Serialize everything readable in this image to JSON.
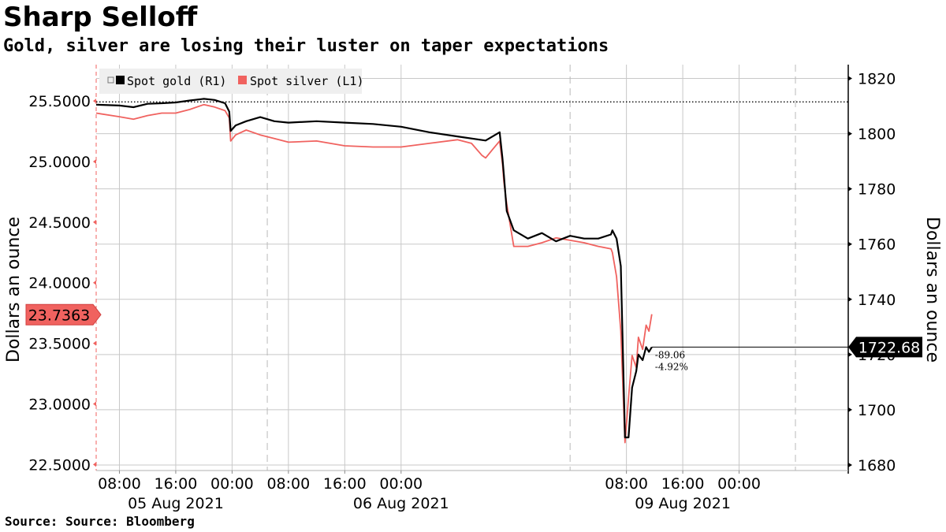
{
  "title": "Sharp Selloff",
  "subtitle": "Gold, silver are losing their luster on taper expectations",
  "source": "Source: Source: Bloomberg",
  "colors": {
    "gold": "#000000",
    "silver": "#f0625f",
    "grid": "#c8c8c8"
  },
  "chart_data": {
    "type": "line",
    "left_axis": {
      "label": "Dollars an ounce",
      "range": [
        22.45,
        25.8
      ],
      "ticks": [
        "22.5000",
        "23.0000",
        "23.5000",
        "24.0000",
        "24.5000",
        "25.0000",
        "25.5000"
      ],
      "current_label": "23.7363"
    },
    "right_axis": {
      "label": "Dollars an ounce",
      "range": [
        1678,
        1825
      ],
      "ticks": [
        "1680",
        "1700",
        "1720",
        "1740",
        "1760",
        "1780",
        "1800",
        "1820"
      ],
      "current_label": "1722.68",
      "reference_line": 1811.5
    },
    "x_axis": {
      "time_ticks": [
        "08:00",
        "16:00",
        "00:00",
        "08:00",
        "16:00",
        "00:00",
        "08:00",
        "16:00",
        "00:00"
      ],
      "date_labels": [
        "05 Aug 2021",
        "06 Aug 2021",
        "09 Aug 2021"
      ],
      "range_hours": [
        4.7,
        111.5
      ]
    },
    "legend": {
      "position": "top-left",
      "items": [
        "Spot gold (R1)",
        "Spot silver (L1)"
      ]
    },
    "annotations": {
      "change_abs": "-89.06",
      "change_pct": "-4.92%"
    },
    "series": [
      {
        "name": "Spot gold (R1)",
        "axis": "right",
        "color": "#000000",
        "x": [
          4.7,
          8,
          10,
          12,
          14,
          16,
          18,
          20,
          21.5,
          23,
          23.6,
          23.8,
          24.5,
          26,
          28,
          30,
          32,
          36,
          40,
          44,
          48,
          52,
          56,
          60,
          62,
          62.4,
          62.6,
          63,
          64,
          66,
          68,
          70,
          72,
          74,
          76,
          77.8,
          78,
          78.6,
          79.2,
          79.8,
          80.3,
          80.8,
          81.4,
          81.7,
          82.3,
          82.8,
          83.2,
          83.6
        ],
        "y": [
          1810.5,
          1810.2,
          1809.6,
          1810.8,
          1811.0,
          1811.3,
          1812.0,
          1812.6,
          1812.2,
          1811.0,
          1808.0,
          1801.0,
          1803.0,
          1804.5,
          1806.0,
          1804.5,
          1804.0,
          1804.5,
          1804.0,
          1803.5,
          1802.5,
          1800.5,
          1799.0,
          1797.5,
          1800.5,
          1791.0,
          1785.0,
          1772.0,
          1765.0,
          1762.0,
          1764.0,
          1761.0,
          1763.0,
          1762.0,
          1762.0,
          1763.5,
          1765.0,
          1762.0,
          1752.0,
          1690.0,
          1690.0,
          1708.0,
          1714.0,
          1720.0,
          1718.0,
          1722.7,
          1721.0,
          1722.7
        ]
      },
      {
        "name": "Spot silver (L1)",
        "axis": "left",
        "color": "#f0625f",
        "x": [
          4.7,
          8,
          10,
          12,
          14,
          16,
          18,
          20,
          21.5,
          23,
          23.6,
          23.8,
          24.5,
          26,
          28,
          30,
          32,
          36,
          40,
          44,
          48,
          52,
          56,
          58,
          59.5,
          60,
          61,
          62,
          62.4,
          62.6,
          63,
          64,
          66,
          68,
          70,
          72,
          74,
          76,
          77.8,
          78,
          78.6,
          79.2,
          79.8,
          80.3,
          80.8,
          81.4,
          81.7,
          82.3,
          82.8,
          83.2,
          83.6
        ],
        "y": [
          25.4,
          25.37,
          25.35,
          25.38,
          25.4,
          25.4,
          25.43,
          25.47,
          25.45,
          25.42,
          25.36,
          25.17,
          25.22,
          25.26,
          25.22,
          25.19,
          25.16,
          25.17,
          25.13,
          25.12,
          25.12,
          25.15,
          25.18,
          25.15,
          25.05,
          25.03,
          25.1,
          25.17,
          24.98,
          24.83,
          24.65,
          24.3,
          24.3,
          24.33,
          24.37,
          24.35,
          24.33,
          24.3,
          24.28,
          24.25,
          24.05,
          23.6,
          22.68,
          23.05,
          23.4,
          23.3,
          23.55,
          23.45,
          23.65,
          23.6,
          23.74
        ]
      }
    ]
  }
}
